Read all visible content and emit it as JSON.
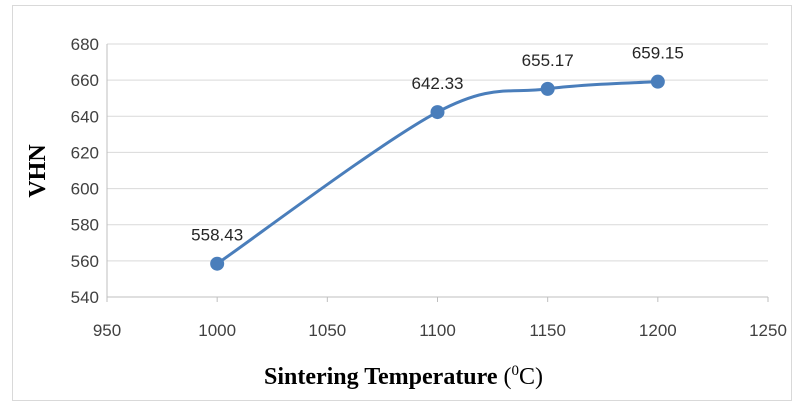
{
  "chart_data": {
    "type": "line",
    "x": [
      1000,
      1100,
      1150,
      1200
    ],
    "series": [
      {
        "values": [
          558.43,
          642.33,
          655.17,
          659.15
        ],
        "color": "#4a7ebb"
      }
    ],
    "data_labels": [
      "558.43",
      "642.33",
      "655.17",
      "659.15"
    ],
    "xlabel": {
      "text": "Sintering Temperature",
      "unit_open": " (",
      "unit_sup": "0",
      "unit_close": "C)"
    },
    "ylabel": "VHN",
    "xlim": [
      950,
      1250
    ],
    "ylim": [
      540,
      680
    ],
    "xticks": [
      950,
      1000,
      1050,
      1100,
      1150,
      1200,
      1250
    ],
    "yticks": [
      540,
      560,
      580,
      600,
      620,
      640,
      660,
      680
    ],
    "grid": true,
    "legend": "none",
    "smooth": true
  }
}
